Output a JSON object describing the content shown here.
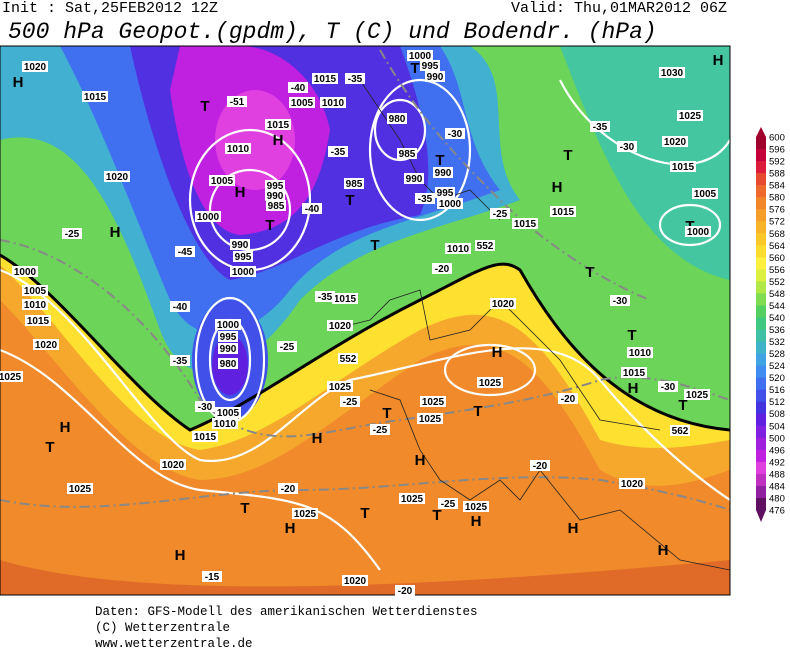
{
  "header": {
    "init": "Init : Sat,25FEB2012 12Z",
    "valid": "Valid: Thu,01MAR2012 06Z",
    "title": "500 hPa Geopot.(gpdm), T (C) und Bodendr. (hPa)"
  },
  "legend": {
    "levels": [
      600,
      596,
      592,
      588,
      584,
      580,
      576,
      572,
      568,
      564,
      560,
      556,
      552,
      548,
      544,
      540,
      536,
      532,
      528,
      524,
      520,
      516,
      512,
      508,
      504,
      500,
      496,
      492,
      488,
      484,
      480,
      476
    ],
    "colors": [
      "#a0002c",
      "#c4003a",
      "#dc1c3a",
      "#e84a30",
      "#ee6a2c",
      "#f2862a",
      "#f59e2a",
      "#f8b428",
      "#fbc82a",
      "#fddc30",
      "#fff040",
      "#dcf040",
      "#b0e848",
      "#80dc50",
      "#54d060",
      "#40c880",
      "#40c0a4",
      "#40b4c8",
      "#40a4e4",
      "#408cf0",
      "#4070f0",
      "#4050e8",
      "#4434e0",
      "#6020e0",
      "#8020e0",
      "#a020e0",
      "#c020e0",
      "#e040e0",
      "#c030c0",
      "#9020a0",
      "#601060"
    ]
  },
  "map": {
    "labels": [
      "H",
      "1020",
      "1015",
      "T",
      "-51",
      "H",
      "1015",
      "1010",
      "1020",
      "1005",
      "H",
      "995",
      "990",
      "985",
      "T",
      "-40",
      "1000",
      "990",
      "995",
      "1000",
      "-45",
      "H",
      "-25",
      "1000",
      "1005",
      "1010",
      "1015",
      "1020",
      "1025",
      "-40",
      "1000",
      "995",
      "990",
      "980",
      "-35",
      "-30",
      "1005",
      "1010",
      "1015",
      "1020",
      "T",
      "H",
      "1025",
      "-20",
      "T",
      "H",
      "1025",
      "H",
      "-15",
      "1020",
      "-20",
      "T",
      "1025",
      "-25",
      "T",
      "H",
      "1025",
      "H",
      "T",
      "1025",
      "1025",
      "-25",
      "H",
      "1025",
      "-25",
      "552",
      "-25",
      "1020",
      "1015",
      "-35",
      "H",
      "1025",
      "T",
      "1020",
      "-20",
      "1010",
      "552",
      "T",
      "1000",
      "995",
      "-35",
      "990",
      "985",
      "980",
      "T",
      "990",
      "985",
      "T",
      "-35",
      "-30",
      "990",
      "995",
      "1000",
      "T",
      "1005",
      "1010",
      "1015",
      "-35",
      "-40",
      "-25",
      "1015",
      "H",
      "T",
      "1015",
      "-35",
      "-30",
      "1020",
      "1015",
      "1030",
      "1025",
      "H",
      "1005",
      "T",
      "1000",
      "T",
      "-30",
      "T",
      "1010",
      "1015",
      "H",
      "-30",
      "1025",
      "T",
      "-20",
      "-20",
      "1020",
      "H",
      "H",
      "562"
    ]
  },
  "footer": [
    "Daten: GFS-Modell des amerikanischen Wetterdienstes",
    "(C) Wetterzentrale",
    "www.wetterzentrale.de"
  ]
}
